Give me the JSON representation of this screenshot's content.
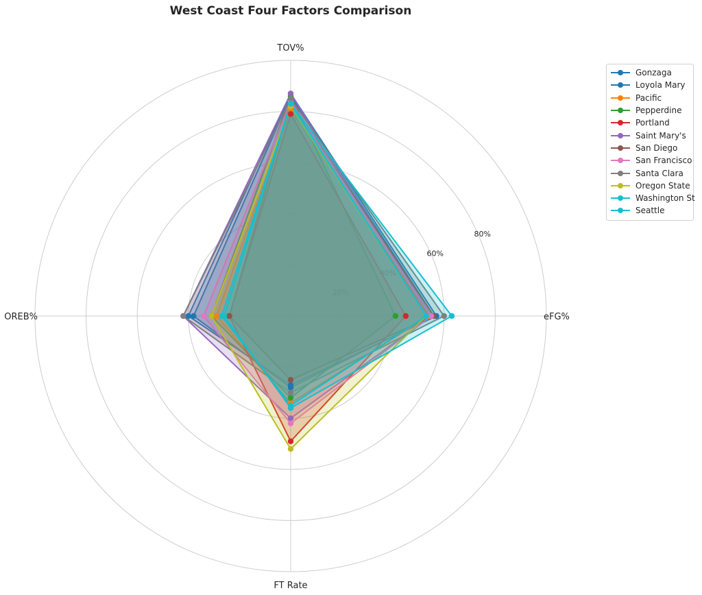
{
  "chart_data": {
    "type": "radar",
    "title": "West Coast Four Factors Comparison",
    "axes": [
      "eFG%",
      "TOV%",
      "OREB%",
      "FT Rate"
    ],
    "radial_ticks": [
      "20%",
      "40%",
      "60%",
      "80%"
    ],
    "rmax": 100,
    "grid": true,
    "legend_placement": "top-right outside",
    "series": [
      {
        "name": "Gonzaga",
        "color": "#1f77b4",
        "values": [
          56,
          86,
          38,
          28
        ]
      },
      {
        "name": "Loyola Mary",
        "color": "#1f77b4",
        "values": [
          57,
          87,
          40,
          27
        ]
      },
      {
        "name": "Pacific",
        "color": "#ff7f0e",
        "values": [
          54,
          81,
          29,
          34
        ]
      },
      {
        "name": "Pepperdine",
        "color": "#2ca02c",
        "values": [
          41,
          86,
          31,
          32
        ]
      },
      {
        "name": "Portland",
        "color": "#d62728",
        "values": [
          45,
          79,
          24,
          49
        ]
      },
      {
        "name": "Saint Mary's",
        "color": "#9467bd",
        "values": [
          55,
          87,
          42,
          40
        ]
      },
      {
        "name": "San Diego",
        "color": "#8c564b",
        "values": [
          56,
          84,
          24,
          25
        ]
      },
      {
        "name": "San Francisco",
        "color": "#e377c2",
        "values": [
          55,
          84,
          34,
          42
        ]
      },
      {
        "name": "Santa Clara",
        "color": "#7f7f7f",
        "values": [
          60,
          85,
          42,
          30
        ]
      },
      {
        "name": "Oregon State",
        "color": "#bcbd22",
        "values": [
          53,
          82,
          31,
          52
        ]
      },
      {
        "name": "Washington St",
        "color": "#17becf",
        "values": [
          53,
          83,
          27,
          35
        ]
      },
      {
        "name": "Seattle",
        "color": "#17becf",
        "values": [
          63,
          83,
          26,
          36
        ]
      }
    ]
  }
}
